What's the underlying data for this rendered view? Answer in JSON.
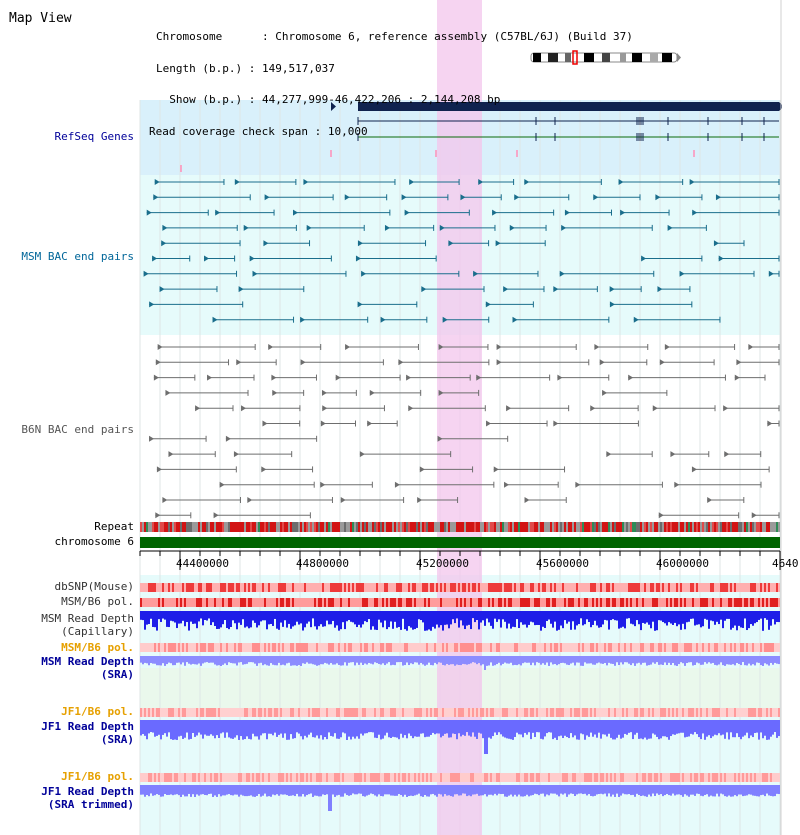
{
  "header": {
    "title": "Map View",
    "info": [
      {
        "key": "Chromosome      ",
        "value": "Chromosome 6, reference assembly (C57BL/6J) (Build 37)"
      },
      {
        "key": "Length (b.p.) ",
        "value": "149,517,037"
      },
      {
        "key": "  Show (b.p.) ",
        "value": "44,277,999-46,422,206 : 2,144,208 bp"
      },
      {
        "key": "Read coverage check span ",
        "value": "10,000"
      }
    ]
  },
  "tracks": {
    "refseq_label": "RefSeq Genes",
    "msm_bac_label": "MSM BAC end pairs",
    "b6n_bac_label": "B6N BAC end pairs",
    "repeat_label": "Repeat",
    "chromosome_label": "chromosome 6",
    "dbsnp_label": "dbSNP(Mouse)",
    "msm_b6_pol_label": "MSM/B6 pol.",
    "msm_depth_cap_label_1": "MSM Read Depth",
    "msm_depth_cap_label_2": "(Capillary)",
    "msm_b6_pol_sra_label": "MSM/B6 pol.",
    "msm_depth_sra_label_1": "MSM Read Depth",
    "msm_depth_sra_label_2": "(SRA)",
    "jf1_b6_pol_label": "JF1/B6 pol.",
    "jf1_depth_sra_label_1": "JF1 Read Depth",
    "jf1_depth_sra_label_2": "(SRA)",
    "jf1_b6_pol_trim_label": "JF1/B6 pol.",
    "jf1_depth_trim_label_1": "JF1 Read Depth",
    "jf1_depth_trim_label_2": "(SRA trimmed)"
  },
  "axis": {
    "ticks": [
      "44400000",
      "44800000",
      "45200000",
      "45600000",
      "46000000",
      "4640"
    ]
  },
  "colors": {
    "refseq_bg": "#d9f0fb",
    "msm_bg": "#e4fbfb",
    "highlight": "#f6d6f0",
    "msm_color": "#1a6e8c",
    "b6n_color": "#707070",
    "label_navy": "#000099",
    "label_teal": "#006699",
    "label_orange": "#e6a000",
    "chromosome": "#006400",
    "depth_blue": "#2020ee",
    "depth_light": "#8080ff",
    "pol_red": "#ff6666"
  }
}
